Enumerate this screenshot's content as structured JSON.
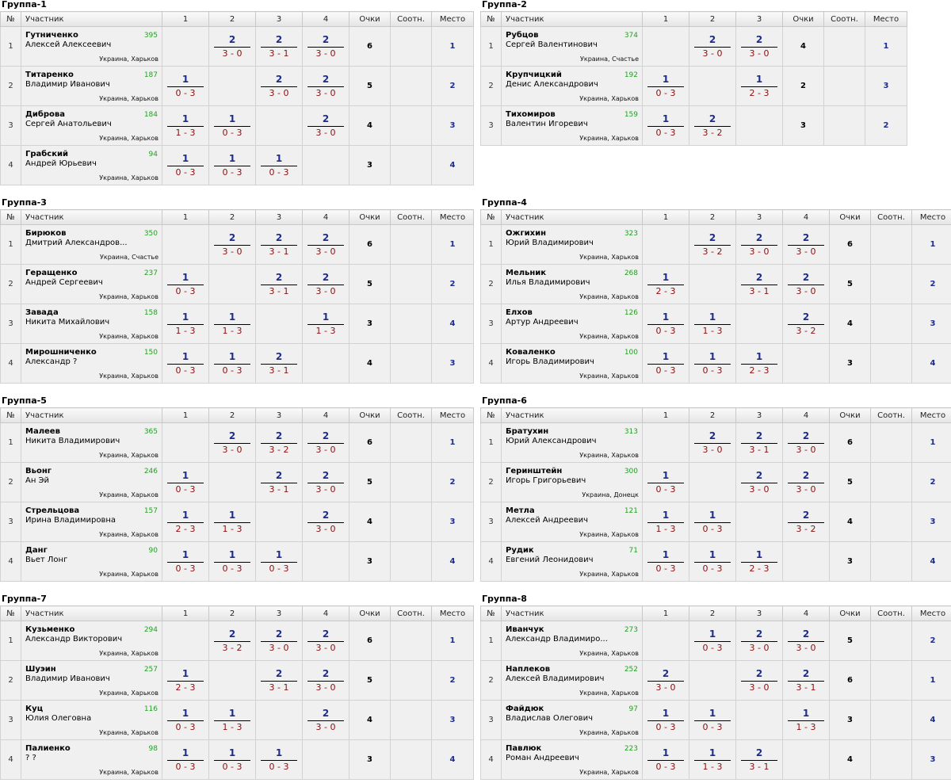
{
  "headers": {
    "num": "№",
    "participant": "Участник",
    "points": "Очки",
    "ratio": "Соотн.",
    "place": "Место",
    "cols": [
      "1",
      "2",
      "3",
      "4"
    ]
  },
  "groups": [
    {
      "title": "Группа-1",
      "players": [
        {
          "n": "1",
          "last": "Гутниченко",
          "first": "Алексей Алексеевич",
          "rating": "395",
          "city": "Украина, Харьков",
          "results": [
            null,
            {
              "t": "2",
              "b": "3 - 0"
            },
            {
              "t": "2",
              "b": "3 - 1"
            },
            {
              "t": "2",
              "b": "3 - 0"
            }
          ],
          "points": "6",
          "ratio": "",
          "place": "1"
        },
        {
          "n": "2",
          "last": "Титаренко",
          "first": "Владимир Иванович",
          "rating": "187",
          "city": "Украина, Харьков",
          "results": [
            {
              "t": "1",
              "b": "0 - 3"
            },
            null,
            {
              "t": "2",
              "b": "3 - 0"
            },
            {
              "t": "2",
              "b": "3 - 0"
            }
          ],
          "points": "5",
          "ratio": "",
          "place": "2"
        },
        {
          "n": "3",
          "last": "Диброва",
          "first": "Сергей Анатольевич",
          "rating": "184",
          "city": "Украина, Харьков",
          "results": [
            {
              "t": "1",
              "b": "1 - 3"
            },
            {
              "t": "1",
              "b": "0 - 3"
            },
            null,
            {
              "t": "2",
              "b": "3 - 0"
            }
          ],
          "points": "4",
          "ratio": "",
          "place": "3"
        },
        {
          "n": "4",
          "last": "Грабский",
          "first": "Андрей Юрьевич",
          "rating": "94",
          "city": "Украина, Харьков",
          "results": [
            {
              "t": "1",
              "b": "0 - 3"
            },
            {
              "t": "1",
              "b": "0 - 3"
            },
            {
              "t": "1",
              "b": "0 - 3"
            },
            null
          ],
          "points": "3",
          "ratio": "",
          "place": "4"
        }
      ]
    },
    {
      "title": "Группа-2",
      "players": [
        {
          "n": "1",
          "last": "Рубцов",
          "first": "Сергей Валентинович",
          "rating": "374",
          "city": "Украина, Счастье",
          "results": [
            null,
            {
              "t": "2",
              "b": "3 - 0"
            },
            {
              "t": "2",
              "b": "3 - 0"
            }
          ],
          "points": "4",
          "ratio": "",
          "place": "1"
        },
        {
          "n": "2",
          "last": "Крупчицкий",
          "first": "Денис Александрович",
          "rating": "192",
          "city": "Украина, Харьков",
          "results": [
            {
              "t": "1",
              "b": "0 - 3"
            },
            null,
            {
              "t": "1",
              "b": "2 - 3"
            }
          ],
          "points": "2",
          "ratio": "",
          "place": "3"
        },
        {
          "n": "3",
          "last": "Тихомиров",
          "first": "Валентин Игоревич",
          "rating": "159",
          "city": "Украина, Харьков",
          "results": [
            {
              "t": "1",
              "b": "0 - 3"
            },
            {
              "t": "2",
              "b": "3 - 2"
            },
            null
          ],
          "points": "3",
          "ratio": "",
          "place": "2"
        }
      ]
    },
    {
      "title": "Группа-3",
      "players": [
        {
          "n": "1",
          "last": "Бирюков",
          "first": "Дмитрий Александров...",
          "rating": "350",
          "city": "Украина, Счастье",
          "results": [
            null,
            {
              "t": "2",
              "b": "3 - 0"
            },
            {
              "t": "2",
              "b": "3 - 1"
            },
            {
              "t": "2",
              "b": "3 - 0"
            }
          ],
          "points": "6",
          "ratio": "",
          "place": "1"
        },
        {
          "n": "2",
          "last": "Геращенко",
          "first": "Андрей Сергеевич",
          "rating": "237",
          "city": "Украина, Харьков",
          "results": [
            {
              "t": "1",
              "b": "0 - 3"
            },
            null,
            {
              "t": "2",
              "b": "3 - 1"
            },
            {
              "t": "2",
              "b": "3 - 0"
            }
          ],
          "points": "5",
          "ratio": "",
          "place": "2"
        },
        {
          "n": "3",
          "last": "Завада",
          "first": "Никита Михайлович",
          "rating": "158",
          "city": "Украина, Харьков",
          "results": [
            {
              "t": "1",
              "b": "1 - 3"
            },
            {
              "t": "1",
              "b": "1 - 3"
            },
            null,
            {
              "t": "1",
              "b": "1 - 3"
            }
          ],
          "points": "3",
          "ratio": "",
          "place": "4"
        },
        {
          "n": "4",
          "last": "Мирошниченко",
          "first": "Александр ?",
          "rating": "150",
          "city": "Украина, Харьков",
          "results": [
            {
              "t": "1",
              "b": "0 - 3"
            },
            {
              "t": "1",
              "b": "0 - 3"
            },
            {
              "t": "2",
              "b": "3 - 1"
            },
            null
          ],
          "points": "4",
          "ratio": "",
          "place": "3"
        }
      ]
    },
    {
      "title": "Группа-4",
      "players": [
        {
          "n": "1",
          "last": "Ожгихин",
          "first": "Юрий Владимирович",
          "rating": "323",
          "city": "Украина, Харьков",
          "results": [
            null,
            {
              "t": "2",
              "b": "3 - 2"
            },
            {
              "t": "2",
              "b": "3 - 0"
            },
            {
              "t": "2",
              "b": "3 - 0"
            }
          ],
          "points": "6",
          "ratio": "",
          "place": "1"
        },
        {
          "n": "2",
          "last": "Мельник",
          "first": "Илья Владимирович",
          "rating": "268",
          "city": "Украина, Харьков",
          "results": [
            {
              "t": "1",
              "b": "2 - 3"
            },
            null,
            {
              "t": "2",
              "b": "3 - 1"
            },
            {
              "t": "2",
              "b": "3 - 0"
            }
          ],
          "points": "5",
          "ratio": "",
          "place": "2"
        },
        {
          "n": "3",
          "last": "Елхов",
          "first": "Артур Андреевич",
          "rating": "126",
          "city": "Украина, Харьков",
          "results": [
            {
              "t": "1",
              "b": "0 - 3"
            },
            {
              "t": "1",
              "b": "1 - 3"
            },
            null,
            {
              "t": "2",
              "b": "3 - 2"
            }
          ],
          "points": "4",
          "ratio": "",
          "place": "3"
        },
        {
          "n": "4",
          "last": "Коваленко",
          "first": "Игорь Владимирович",
          "rating": "100",
          "city": "Украина, Харьков",
          "results": [
            {
              "t": "1",
              "b": "0 - 3"
            },
            {
              "t": "1",
              "b": "0 - 3"
            },
            {
              "t": "1",
              "b": "2 - 3"
            },
            null
          ],
          "points": "3",
          "ratio": "",
          "place": "4"
        }
      ]
    },
    {
      "title": "Группа-5",
      "players": [
        {
          "n": "1",
          "last": "Малеев",
          "first": "Никита Владимирович",
          "rating": "365",
          "city": "Украина, Харьков",
          "results": [
            null,
            {
              "t": "2",
              "b": "3 - 0"
            },
            {
              "t": "2",
              "b": "3 - 2"
            },
            {
              "t": "2",
              "b": "3 - 0"
            }
          ],
          "points": "6",
          "ratio": "",
          "place": "1"
        },
        {
          "n": "2",
          "last": "Вьонг",
          "first": "Ан Эй",
          "rating": "246",
          "city": "Украина, Харьков",
          "results": [
            {
              "t": "1",
              "b": "0 - 3"
            },
            null,
            {
              "t": "2",
              "b": "3 - 1"
            },
            {
              "t": "2",
              "b": "3 - 0"
            }
          ],
          "points": "5",
          "ratio": "",
          "place": "2"
        },
        {
          "n": "3",
          "last": "Стрельцова",
          "first": "Ирина Владимировна",
          "rating": "157",
          "city": "Украина, Харьков",
          "results": [
            {
              "t": "1",
              "b": "2 - 3"
            },
            {
              "t": "1",
              "b": "1 - 3"
            },
            null,
            {
              "t": "2",
              "b": "3 - 0"
            }
          ],
          "points": "4",
          "ratio": "",
          "place": "3"
        },
        {
          "n": "4",
          "last": "Данг",
          "first": "Вьет Лонг",
          "rating": "90",
          "city": "Украина, Харьков",
          "results": [
            {
              "t": "1",
              "b": "0 - 3"
            },
            {
              "t": "1",
              "b": "0 - 3"
            },
            {
              "t": "1",
              "b": "0 - 3"
            },
            null
          ],
          "points": "3",
          "ratio": "",
          "place": "4"
        }
      ]
    },
    {
      "title": "Группа-6",
      "players": [
        {
          "n": "1",
          "last": "Братухин",
          "first": "Юрий Александрович",
          "rating": "313",
          "city": "Украина, Харьков",
          "results": [
            null,
            {
              "t": "2",
              "b": "3 - 0"
            },
            {
              "t": "2",
              "b": "3 - 1"
            },
            {
              "t": "2",
              "b": "3 - 0"
            }
          ],
          "points": "6",
          "ratio": "",
          "place": "1"
        },
        {
          "n": "2",
          "last": "Геринштейн",
          "first": "Игорь Григорьевич",
          "rating": "300",
          "city": "Украина, Донецк",
          "results": [
            {
              "t": "1",
              "b": "0 - 3"
            },
            null,
            {
              "t": "2",
              "b": "3 - 0"
            },
            {
              "t": "2",
              "b": "3 - 0"
            }
          ],
          "points": "5",
          "ratio": "",
          "place": "2"
        },
        {
          "n": "3",
          "last": "Метла",
          "first": "Алексей Андреевич",
          "rating": "121",
          "city": "Украина, Харьков",
          "results": [
            {
              "t": "1",
              "b": "1 - 3"
            },
            {
              "t": "1",
              "b": "0 - 3"
            },
            null,
            {
              "t": "2",
              "b": "3 - 2"
            }
          ],
          "points": "4",
          "ratio": "",
          "place": "3"
        },
        {
          "n": "4",
          "last": "Рудик",
          "first": "Евгений Леонидович",
          "rating": "71",
          "city": "Украина, Харьков",
          "results": [
            {
              "t": "1",
              "b": "0 - 3"
            },
            {
              "t": "1",
              "b": "0 - 3"
            },
            {
              "t": "1",
              "b": "2 - 3"
            },
            null
          ],
          "points": "3",
          "ratio": "",
          "place": "4"
        }
      ]
    },
    {
      "title": "Группа-7",
      "players": [
        {
          "n": "1",
          "last": "Кузьменко",
          "first": "Александр Викторович",
          "rating": "294",
          "city": "Украина, Харьков",
          "results": [
            null,
            {
              "t": "2",
              "b": "3 - 2"
            },
            {
              "t": "2",
              "b": "3 - 0"
            },
            {
              "t": "2",
              "b": "3 - 0"
            }
          ],
          "points": "6",
          "ratio": "",
          "place": "1"
        },
        {
          "n": "2",
          "last": "Шуэин",
          "first": "Владимир Иванович",
          "rating": "257",
          "city": "Украина, Харьков",
          "results": [
            {
              "t": "1",
              "b": "2 - 3"
            },
            null,
            {
              "t": "2",
              "b": "3 - 1"
            },
            {
              "t": "2",
              "b": "3 - 0"
            }
          ],
          "points": "5",
          "ratio": "",
          "place": "2"
        },
        {
          "n": "3",
          "last": "Куц",
          "first": "Юлия Олеговна",
          "rating": "116",
          "city": "Украина, Харьков",
          "results": [
            {
              "t": "1",
              "b": "0 - 3"
            },
            {
              "t": "1",
              "b": "1 - 3"
            },
            null,
            {
              "t": "2",
              "b": "3 - 0"
            }
          ],
          "points": "4",
          "ratio": "",
          "place": "3"
        },
        {
          "n": "4",
          "last": "Палиенко",
          "first": "? ?",
          "rating": "98",
          "city": "Украина, Харьков",
          "results": [
            {
              "t": "1",
              "b": "0 - 3"
            },
            {
              "t": "1",
              "b": "0 - 3"
            },
            {
              "t": "1",
              "b": "0 - 3"
            },
            null
          ],
          "points": "3",
          "ratio": "",
          "place": "4"
        }
      ]
    },
    {
      "title": "Группа-8",
      "players": [
        {
          "n": "1",
          "last": "Иванчук",
          "first": "Александр Владимиро...",
          "rating": "273",
          "city": "Украина, Харьков",
          "results": [
            null,
            {
              "t": "1",
              "b": "0 - 3"
            },
            {
              "t": "2",
              "b": "3 - 0"
            },
            {
              "t": "2",
              "b": "3 - 0"
            }
          ],
          "points": "5",
          "ratio": "",
          "place": "2"
        },
        {
          "n": "2",
          "last": "Наплеков",
          "first": "Алексей Владимирович",
          "rating": "252",
          "city": "Украина, Харьков",
          "results": [
            {
              "t": "2",
              "b": "3 - 0"
            },
            null,
            {
              "t": "2",
              "b": "3 - 0"
            },
            {
              "t": "2",
              "b": "3 - 1"
            }
          ],
          "points": "6",
          "ratio": "",
          "place": "1"
        },
        {
          "n": "3",
          "last": "Файдюк",
          "first": "Владислав Олегович",
          "rating": "97",
          "city": "Украина, Харьков",
          "results": [
            {
              "t": "1",
              "b": "0 - 3"
            },
            {
              "t": "1",
              "b": "0 - 3"
            },
            null,
            {
              "t": "1",
              "b": "1 - 3"
            }
          ],
          "points": "3",
          "ratio": "",
          "place": "4"
        },
        {
          "n": "4",
          "last": "Павлюк",
          "first": "Роман Андреевич",
          "rating": "223",
          "city": "Украина, Харьков",
          "results": [
            {
              "t": "1",
              "b": "0 - 3"
            },
            {
              "t": "1",
              "b": "1 - 3"
            },
            {
              "t": "2",
              "b": "3 - 1"
            },
            null
          ],
          "points": "4",
          "ratio": "",
          "place": "3"
        }
      ]
    }
  ]
}
